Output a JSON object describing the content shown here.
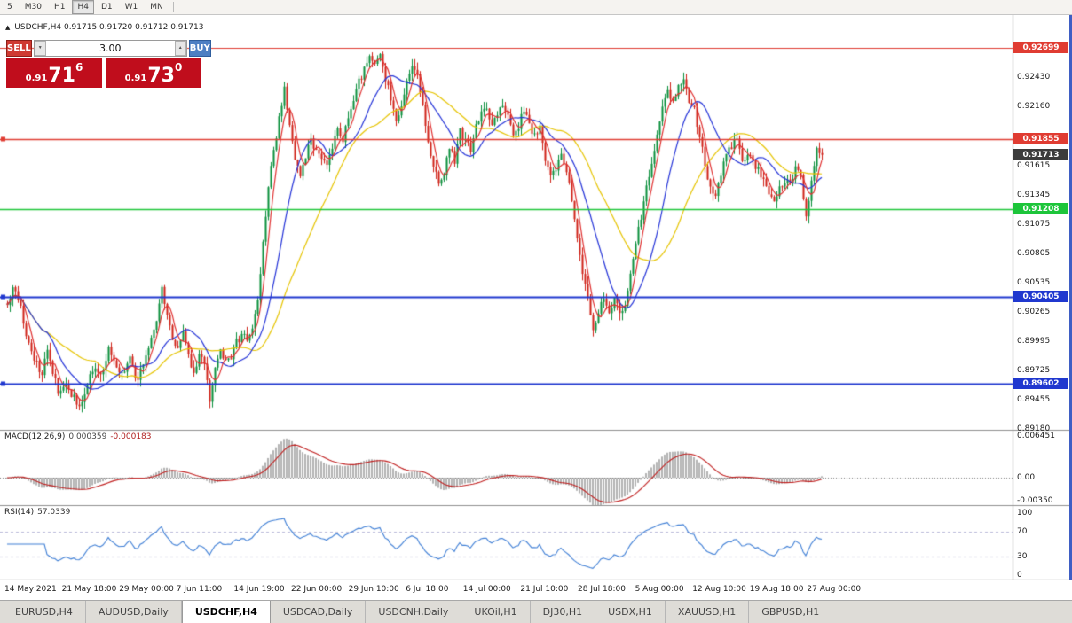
{
  "toolbar": {
    "timeframes": [
      {
        "label": "5",
        "active": false
      },
      {
        "label": "M30",
        "active": false
      },
      {
        "label": "H1",
        "active": false
      },
      {
        "label": "H4",
        "active": true
      },
      {
        "label": "D1",
        "active": false
      },
      {
        "label": "W1",
        "active": false
      },
      {
        "label": "MN",
        "active": false
      }
    ]
  },
  "chart": {
    "marker": "▲",
    "symbol": "USDCHF,H4",
    "ohlc": "0.91715 0.91720 0.91712 0.91713"
  },
  "trade_panel": {
    "sell_label": "SELL",
    "buy_label": "BUY",
    "volume": "3.00",
    "spin_up": "▲",
    "spin_down": "▼",
    "sell_price": {
      "prefix": "0.91",
      "big": "71",
      "sup": "6"
    },
    "buy_price": {
      "prefix": "0.91",
      "big": "73",
      "sup": "0"
    },
    "colors": {
      "sell_button": "#cf3a32",
      "buy_button": "#4d7fc3",
      "price_box": "#c00d1c"
    }
  },
  "indicators": {
    "macd": {
      "name": "MACD(12,26,9)",
      "value1": "0.000359",
      "value2": "-0.000183",
      "axis": [
        {
          "text": "0.006451",
          "v": 0.006451
        },
        {
          "text": "0.00",
          "v": 0
        },
        {
          "text": "-0.00350",
          "v": -0.0035
        }
      ],
      "histogram_color": "#b2b2b2",
      "signal_color": "#c01f1f"
    },
    "rsi": {
      "name": "RSI(14)",
      "value": "57.0339",
      "axis": [
        {
          "text": "100",
          "v": 100
        },
        {
          "text": "70",
          "v": 70
        },
        {
          "text": "30",
          "v": 30
        },
        {
          "text": "0",
          "v": 0
        }
      ],
      "levels": [
        70,
        30
      ],
      "line_color": "#3f7fd6"
    }
  },
  "chart_data": {
    "type": "candlestick",
    "symbol": "USDCHF",
    "timeframe": "H4",
    "current_price": 0.91713,
    "y_axis": {
      "max": 0.93003,
      "min": 0.89174
    },
    "y_ticks": [
      "0.92430",
      "0.92160",
      "0.91615",
      "0.91345",
      "0.91075",
      "0.90805",
      "0.90535",
      "0.90265",
      "0.89995",
      "0.89725",
      "0.89455",
      "0.89180"
    ],
    "levels": [
      {
        "price": 0.92699,
        "label": "0.92699",
        "color": "#e03c32",
        "width": 1.2,
        "handle": false
      },
      {
        "price": 0.91855,
        "label": "0.91855",
        "color": "#e03c32",
        "width": 1.4,
        "handle": true
      },
      {
        "price": 0.91208,
        "label": "0.91208",
        "color": "#1dc53a",
        "width": 1.6,
        "handle": false
      },
      {
        "price": 0.90405,
        "label": "0.90405",
        "color": "#2038cf",
        "width": 2,
        "handle": true
      },
      {
        "price": 0.89602,
        "label": "0.89602",
        "color": "#2038cf",
        "width": 2,
        "handle": true
      }
    ],
    "current_badge_bg": "#3c3c3c",
    "colors": {
      "up": "#0a8f3c",
      "down": "#cf2218"
    },
    "moving_averages": [
      {
        "period": 34,
        "color": "#e6c400"
      },
      {
        "period": 16,
        "color": "#2433d8"
      },
      {
        "period": 5,
        "color": "#e03030"
      }
    ],
    "x_labels": [
      "14 May 2021",
      "21 May 18:00",
      "29 May 00:00",
      "7 Jun 11:00",
      "14 Jun 19:00",
      "22 Jun 00:00",
      "29 Jun 10:00",
      "6 Jul 18:00",
      "14 Jul 00:00",
      "21 Jul 10:00",
      "28 Jul 18:00",
      "5 Aug 00:00",
      "12 Aug 10:00",
      "19 Aug 18:00",
      "27 Aug 00:00"
    ],
    "path_anchors": [
      [
        8,
        0.903
      ],
      [
        14,
        0.9048
      ],
      [
        22,
        0.9035
      ],
      [
        30,
        0.9
      ],
      [
        38,
        0.8985
      ],
      [
        46,
        0.8965
      ],
      [
        52,
        0.899
      ],
      [
        58,
        0.8975
      ],
      [
        66,
        0.895
      ],
      [
        74,
        0.8962
      ],
      [
        82,
        0.8948
      ],
      [
        90,
        0.8935
      ],
      [
        98,
        0.8962
      ],
      [
        106,
        0.8978
      ],
      [
        114,
        0.897
      ],
      [
        122,
        0.8992
      ],
      [
        130,
        0.898
      ],
      [
        138,
        0.8968
      ],
      [
        146,
        0.8985
      ],
      [
        152,
        0.8962
      ],
      [
        160,
        0.8975
      ],
      [
        168,
        0.8995
      ],
      [
        176,
        0.902
      ],
      [
        182,
        0.9048
      ],
      [
        188,
        0.9025
      ],
      [
        194,
        0.9
      ],
      [
        200,
        0.8992
      ],
      [
        206,
        0.9005
      ],
      [
        212,
        0.8985
      ],
      [
        218,
        0.897
      ],
      [
        224,
        0.8988
      ],
      [
        230,
        0.8975
      ],
      [
        236,
        0.8945
      ],
      [
        242,
        0.8972
      ],
      [
        248,
        0.8988
      ],
      [
        254,
        0.8978
      ],
      [
        260,
        0.8985
      ],
      [
        266,
        0.8998
      ],
      [
        272,
        0.9005
      ],
      [
        278,
        0.9
      ],
      [
        284,
        0.9008
      ],
      [
        290,
        0.904
      ],
      [
        296,
        0.909
      ],
      [
        302,
        0.914
      ],
      [
        308,
        0.9175
      ],
      [
        314,
        0.9205
      ],
      [
        320,
        0.9235
      ],
      [
        326,
        0.9195
      ],
      [
        332,
        0.9165
      ],
      [
        338,
        0.9155
      ],
      [
        344,
        0.917
      ],
      [
        350,
        0.9185
      ],
      [
        356,
        0.9175
      ],
      [
        362,
        0.9168
      ],
      [
        368,
        0.9162
      ],
      [
        374,
        0.918
      ],
      [
        380,
        0.9195
      ],
      [
        386,
        0.9185
      ],
      [
        392,
        0.9205
      ],
      [
        398,
        0.922
      ],
      [
        404,
        0.9238
      ],
      [
        410,
        0.925
      ],
      [
        416,
        0.9262
      ],
      [
        422,
        0.9255
      ],
      [
        428,
        0.9268
      ],
      [
        434,
        0.924
      ],
      [
        440,
        0.9225
      ],
      [
        446,
        0.9205
      ],
      [
        452,
        0.9218
      ],
      [
        458,
        0.924
      ],
      [
        464,
        0.9255
      ],
      [
        470,
        0.9242
      ],
      [
        476,
        0.9215
      ],
      [
        482,
        0.9185
      ],
      [
        488,
        0.916
      ],
      [
        494,
        0.9148
      ],
      [
        500,
        0.9155
      ],
      [
        506,
        0.918
      ],
      [
        512,
        0.9165
      ],
      [
        518,
        0.9192
      ],
      [
        524,
        0.9185
      ],
      [
        530,
        0.9175
      ],
      [
        536,
        0.9198
      ],
      [
        542,
        0.9208
      ],
      [
        548,
        0.9215
      ],
      [
        554,
        0.92
      ],
      [
        560,
        0.921
      ],
      [
        566,
        0.9218
      ],
      [
        572,
        0.9205
      ],
      [
        578,
        0.919
      ],
      [
        584,
        0.9198
      ],
      [
        590,
        0.9212
      ],
      [
        596,
        0.92
      ],
      [
        602,
        0.9188
      ],
      [
        608,
        0.9196
      ],
      [
        614,
        0.9165
      ],
      [
        620,
        0.9152
      ],
      [
        626,
        0.916
      ],
      [
        632,
        0.9172
      ],
      [
        638,
        0.9158
      ],
      [
        644,
        0.913
      ],
      [
        650,
        0.9095
      ],
      [
        656,
        0.906
      ],
      [
        662,
        0.904
      ],
      [
        668,
        0.9012
      ],
      [
        674,
        0.9028
      ],
      [
        680,
        0.9038
      ],
      [
        686,
        0.9022
      ],
      [
        692,
        0.904
      ],
      [
        698,
        0.9025
      ],
      [
        704,
        0.9032
      ],
      [
        710,
        0.906
      ],
      [
        716,
        0.909
      ],
      [
        722,
        0.9115
      ],
      [
        728,
        0.914
      ],
      [
        734,
        0.9165
      ],
      [
        740,
        0.919
      ],
      [
        746,
        0.9212
      ],
      [
        752,
        0.9228
      ],
      [
        758,
        0.9218
      ],
      [
        764,
        0.9232
      ],
      [
        770,
        0.924
      ],
      [
        776,
        0.9222
      ],
      [
        782,
        0.9212
      ],
      [
        788,
        0.919
      ],
      [
        794,
        0.9162
      ],
      [
        800,
        0.914
      ],
      [
        806,
        0.9132
      ],
      [
        812,
        0.9152
      ],
      [
        818,
        0.9172
      ],
      [
        824,
        0.918
      ],
      [
        830,
        0.9186
      ],
      [
        836,
        0.9168
      ],
      [
        842,
        0.9172
      ],
      [
        848,
        0.9166
      ],
      [
        854,
        0.9158
      ],
      [
        860,
        0.9148
      ],
      [
        866,
        0.9136
      ],
      [
        872,
        0.913
      ],
      [
        878,
        0.914
      ],
      [
        884,
        0.9148
      ],
      [
        890,
        0.9144
      ],
      [
        896,
        0.9158
      ],
      [
        902,
        0.915
      ],
      [
        908,
        0.9118
      ],
      [
        914,
        0.9145
      ],
      [
        920,
        0.9178
      ],
      [
        926,
        0.91713
      ]
    ]
  },
  "tabs": [
    {
      "label": "EURUSD,H4",
      "active": false
    },
    {
      "label": "AUDUSD,Daily",
      "active": false
    },
    {
      "label": "USDCHF,H4",
      "active": true
    },
    {
      "label": "USDCAD,Daily",
      "active": false
    },
    {
      "label": "USDCNH,Daily",
      "active": false
    },
    {
      "label": "UKOil,H1",
      "active": false
    },
    {
      "label": "DJ30,H1",
      "active": false
    },
    {
      "label": "USDX,H1",
      "active": false
    },
    {
      "label": "XAUUSD,H1",
      "active": false
    },
    {
      "label": "GBPUSD,H1",
      "active": false
    }
  ]
}
